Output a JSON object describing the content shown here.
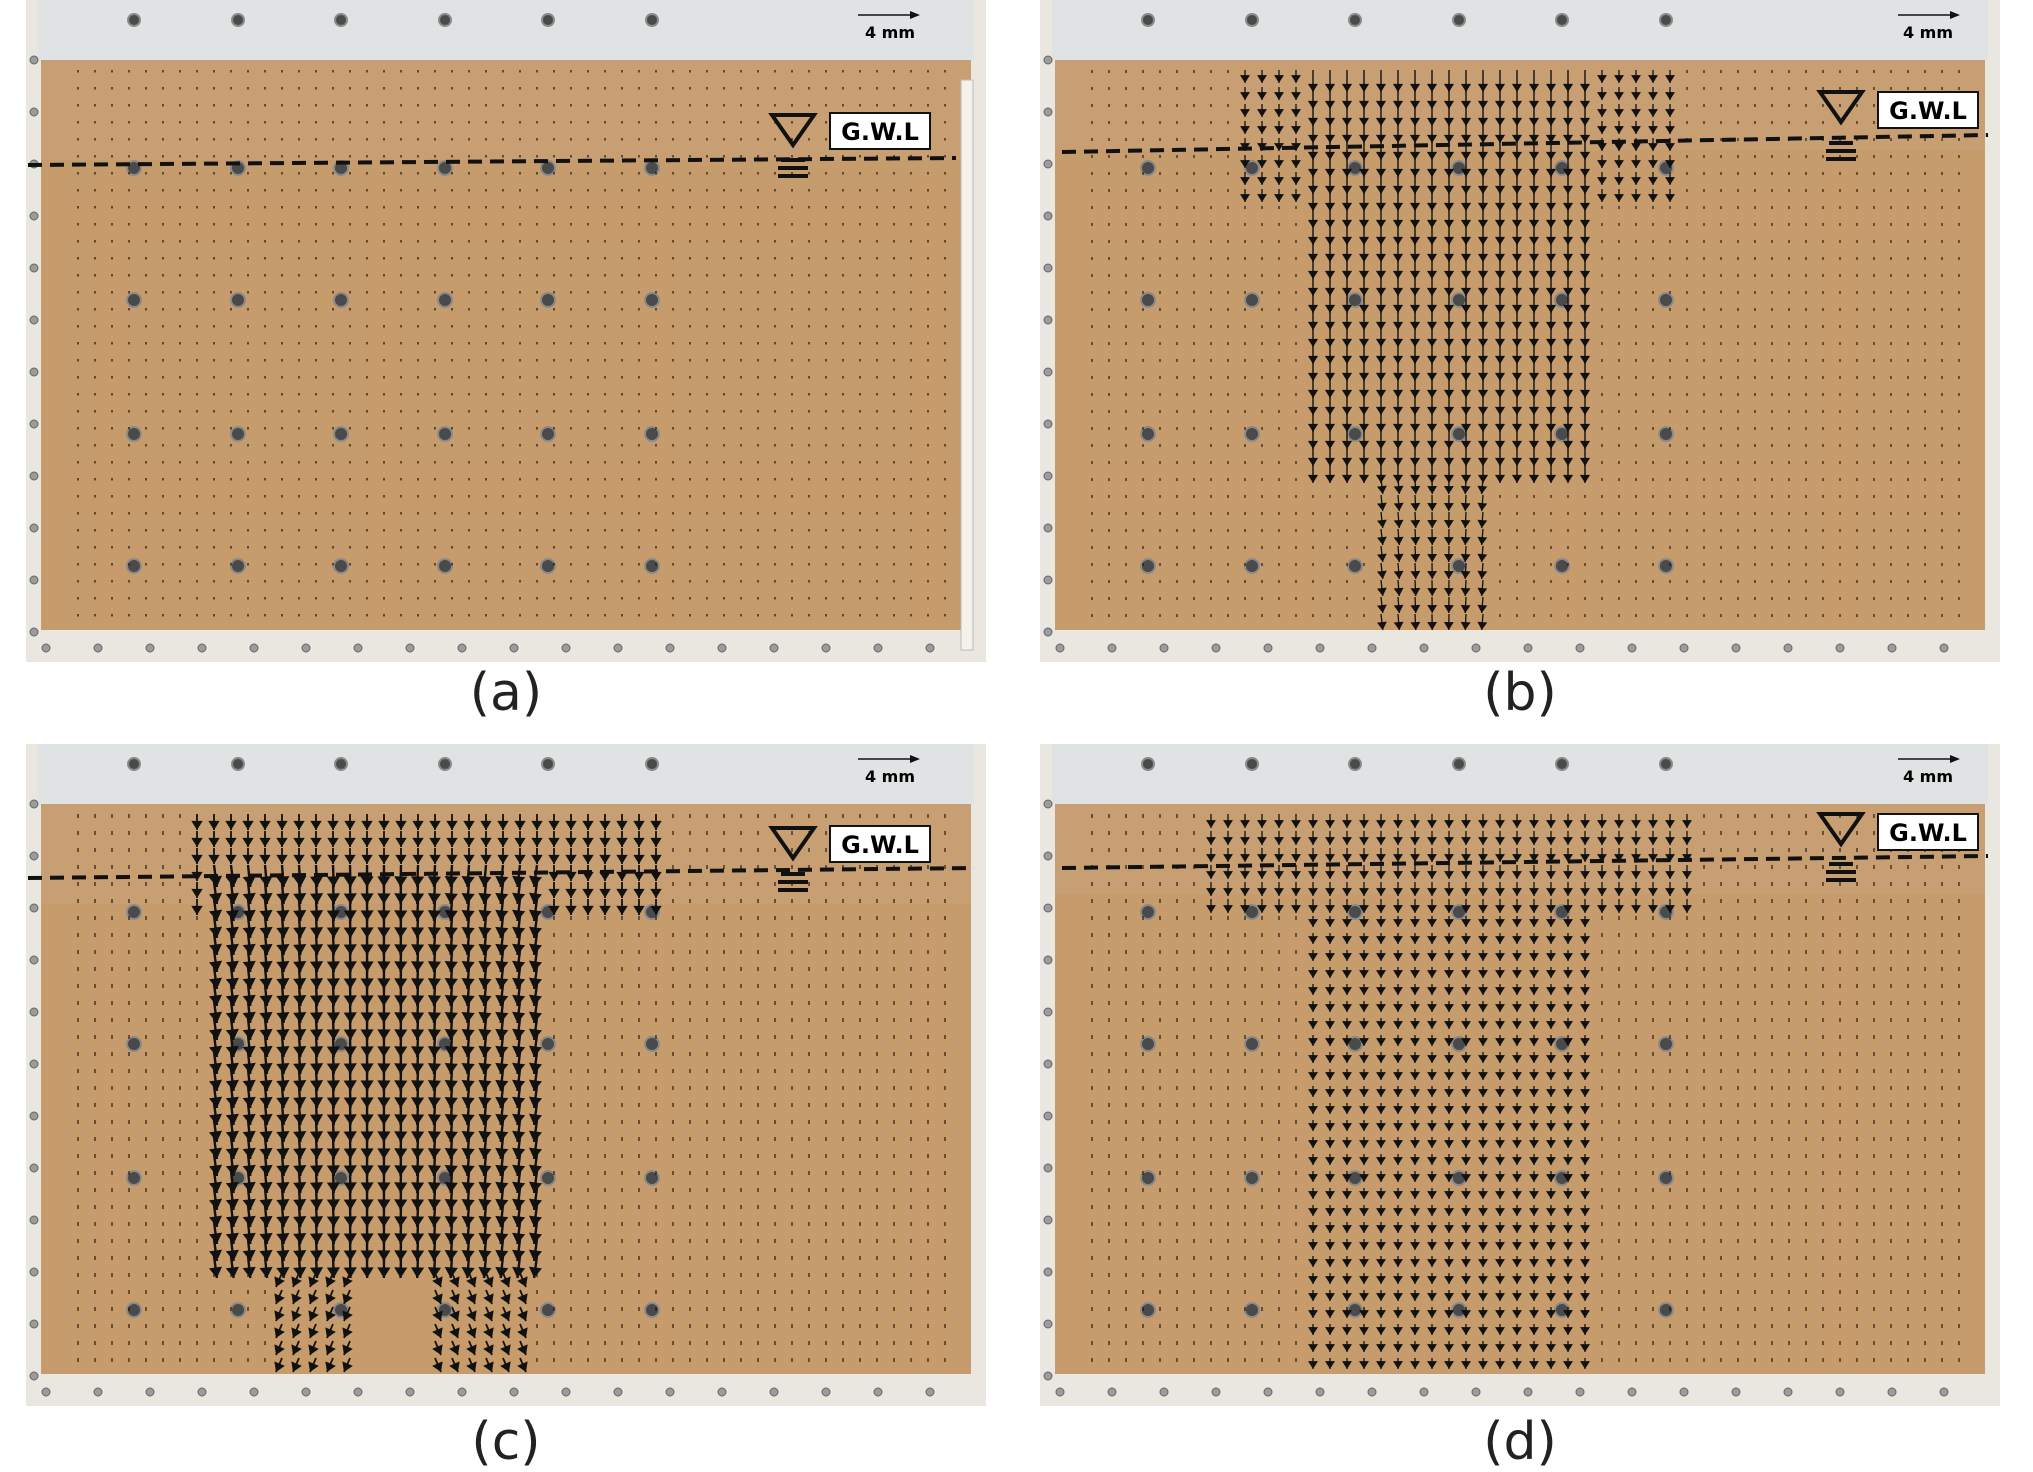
{
  "figure": {
    "panels": [
      {
        "caption": "(a)",
        "gwl_label": "G.W.L",
        "scale_label": "4 mm"
      },
      {
        "caption": "(b)",
        "gwl_label": "G.W.L",
        "scale_label": "4 mm"
      },
      {
        "caption": "(c)",
        "gwl_label": "G.W.L",
        "scale_label": "4 mm"
      },
      {
        "caption": "(d)",
        "gwl_label": "G.W.L",
        "scale_label": "4 mm"
      }
    ]
  },
  "colors": {
    "sand": "#c69c6d",
    "frame": "#eceae3",
    "vector": "#111111",
    "water_line": "#111111",
    "marker": "#4a4a4a"
  }
}
